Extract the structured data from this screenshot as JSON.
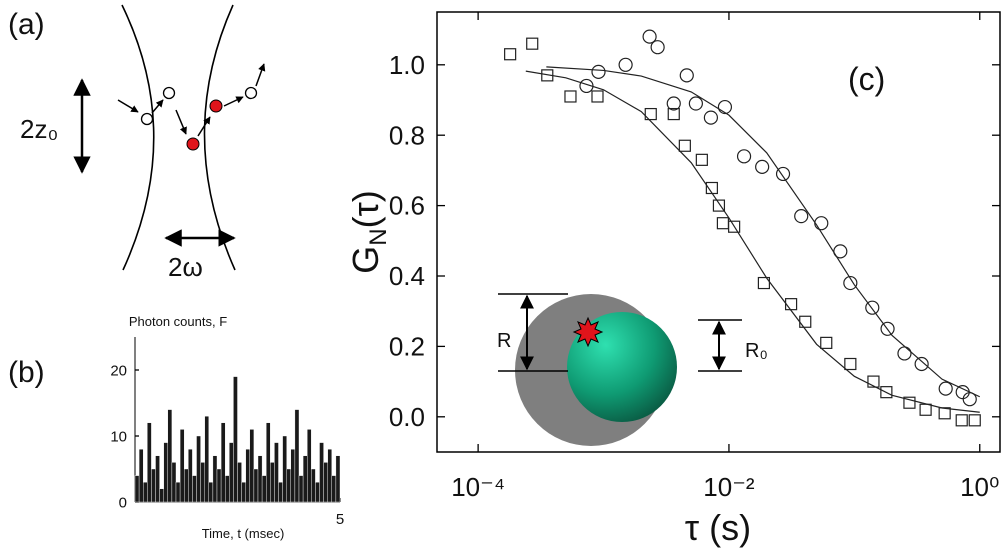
{
  "panel_a": {
    "label": "(a)",
    "height_label": "2z₀",
    "width_label": "2ω"
  },
  "chart_data": [
    {
      "type": "histogram",
      "panel_label": "(b)",
      "ylabel": "Photon counts, F",
      "xlabel": "Time, t (msec)",
      "bins": [
        0,
        0.1,
        0.2,
        0.3,
        0.4,
        0.5,
        0.6,
        0.7,
        0.8,
        0.9,
        1.0,
        1.1,
        1.2,
        1.3,
        1.4,
        1.5,
        1.6,
        1.7,
        1.8,
        1.9,
        2.0,
        2.1,
        2.2,
        2.3,
        2.4,
        2.5,
        2.6,
        2.7,
        2.8,
        2.9,
        3.0,
        3.1,
        3.2,
        3.3,
        3.4,
        3.5,
        3.6,
        3.7,
        3.8,
        3.9,
        4.0,
        4.1,
        4.2,
        4.3,
        4.4,
        4.5,
        4.6,
        4.7,
        4.8,
        4.9,
        5.0
      ],
      "values": [
        4,
        8,
        3,
        12,
        5,
        7,
        2,
        9,
        14,
        6,
        3,
        11,
        5,
        8,
        4,
        10,
        6,
        13,
        3,
        7,
        5,
        12,
        4,
        9,
        19,
        6,
        3,
        8,
        11,
        5,
        7,
        4,
        12,
        6,
        9,
        3,
        10,
        5,
        8,
        14,
        4,
        7,
        11,
        5,
        3,
        9,
        6,
        8,
        4,
        7
      ],
      "color": "#1a1a1a",
      "xlim": [
        0,
        5
      ],
      "ylim": [
        0,
        25
      ],
      "xticks": [
        5
      ],
      "yticks": [
        0,
        10,
        20
      ]
    },
    {
      "type": "scatter",
      "panel_label": "(c)",
      "xlabel": "τ (s)",
      "ylabel": {
        "text": "G",
        "sub": "N",
        "tail": "(τ)"
      },
      "log_x": true,
      "xlim": [
        4.7e-05,
        1.45
      ],
      "ylim": [
        -0.1,
        1.15
      ],
      "xticks": [
        {
          "value": 0.0001,
          "label": "10⁻⁴"
        },
        {
          "value": 0.01,
          "label": "10⁻²"
        },
        {
          "value": 1,
          "label": "10⁰"
        }
      ],
      "yticks": [
        {
          "value": 0,
          "label": "0.0"
        },
        0.2,
        0.4,
        0.6,
        0.8,
        {
          "value": 1,
          "label": "1.0"
        }
      ],
      "inset": {
        "outer_label": "R",
        "inner_label": "R₀"
      },
      "series": [
        {
          "style": "square",
          "color": "#222222",
          "x": [
            0.00018,
            0.00027,
            0.000356,
            0.000545,
            0.000895,
            0.00238,
            0.00363,
            0.00445,
            0.00608,
            0.00731,
            0.00832,
            0.00895,
            0.011,
            0.019,
            0.0313,
            0.0406,
            0.0597,
            0.0929,
            0.142,
            0.18,
            0.275,
            0.37,
            0.525,
            0.718,
            0.912
          ],
          "values": [
            1.03,
            1.06,
            0.97,
            0.91,
            0.91,
            0.86,
            0.86,
            0.77,
            0.73,
            0.65,
            0.6,
            0.55,
            0.54,
            0.38,
            0.32,
            0.27,
            0.21,
            0.15,
            0.1,
            0.07,
            0.04,
            0.02,
            0.01,
            -0.01,
            -0.01
          ]
        },
        {
          "style": "circle",
          "color": "#222222",
          "x": [
            0.000731,
            0.000912,
            0.0015,
            0.00233,
            0.0027,
            0.00363,
            0.00461,
            0.00545,
            0.00718,
            0.00929,
            0.0132,
            0.0184,
            0.027,
            0.0377,
            0.0545,
            0.0773,
            0.0929,
            0.139,
            0.184,
            0.251,
            0.344,
            0.535,
            0.731,
            0.832
          ],
          "values": [
            0.94,
            0.98,
            1.0,
            1.08,
            1.05,
            0.89,
            0.97,
            0.89,
            0.85,
            0.88,
            0.74,
            0.71,
            0.69,
            0.57,
            0.55,
            0.47,
            0.38,
            0.31,
            0.25,
            0.18,
            0.15,
            0.08,
            0.07,
            0.05
          ]
        },
        {
          "style": "line",
          "color": "#222222",
          "x": [
            0.00024,
            0.0005,
            0.001,
            0.002,
            0.005,
            0.01,
            0.02,
            0.05,
            0.1,
            0.2,
            0.5,
            1
          ],
          "values": [
            0.982,
            0.963,
            0.929,
            0.867,
            0.722,
            0.565,
            0.394,
            0.206,
            0.115,
            0.061,
            0.025,
            0.013
          ]
        },
        {
          "style": "line",
          "color": "#222222",
          "x": [
            0.00035,
            0.001,
            0.002,
            0.005,
            0.01,
            0.02,
            0.05,
            0.1,
            0.2,
            0.5,
            1
          ],
          "values": [
            0.994,
            0.984,
            0.968,
            0.923,
            0.857,
            0.75,
            0.545,
            0.375,
            0.231,
            0.107,
            0.057
          ]
        }
      ]
    }
  ]
}
